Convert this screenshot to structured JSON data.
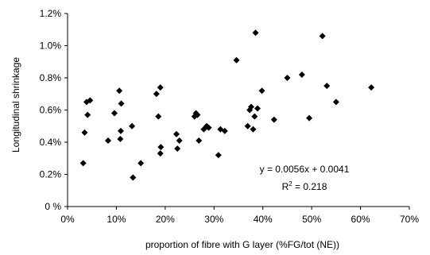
{
  "chart_data": {
    "type": "scatter",
    "title": "",
    "xlabel": "proportion of fibre with G layer (%FG/tot (NE))",
    "ylabel": "Longitudinal shrinkage",
    "ylabel_suffix": ".",
    "xlim": [
      0,
      70
    ],
    "ylim": [
      0,
      1.2
    ],
    "x_ticks": [
      0,
      10,
      20,
      30,
      40,
      50,
      60,
      70
    ],
    "x_tick_labels": [
      "0%",
      "10%",
      "20%",
      "30%",
      "40%",
      "50%",
      "60%",
      "70%"
    ],
    "y_ticks": [
      0,
      0.2,
      0.4,
      0.6,
      0.8,
      1.0,
      1.2
    ],
    "y_tick_labels": [
      "0 %",
      "0.2%",
      "0.4%",
      "0.6%",
      "0.8%",
      "1.0%",
      "1.2%"
    ],
    "grid": false,
    "legend": "none",
    "marker": "diamond",
    "points": [
      [
        3.2,
        0.27
      ],
      [
        3.5,
        0.46
      ],
      [
        3.9,
        0.65
      ],
      [
        4.1,
        0.57
      ],
      [
        4.6,
        0.66
      ],
      [
        8.3,
        0.41
      ],
      [
        9.6,
        0.58
      ],
      [
        10.6,
        0.72
      ],
      [
        10.8,
        0.42
      ],
      [
        10.9,
        0.47
      ],
      [
        11.0,
        0.64
      ],
      [
        13.2,
        0.5
      ],
      [
        13.4,
        0.18
      ],
      [
        15.0,
        0.27
      ],
      [
        18.2,
        0.7
      ],
      [
        18.6,
        0.56
      ],
      [
        19.0,
        0.74
      ],
      [
        19.1,
        0.37
      ],
      [
        19.0,
        0.33
      ],
      [
        22.3,
        0.45
      ],
      [
        22.5,
        0.36
      ],
      [
        22.9,
        0.41
      ],
      [
        26.0,
        0.56
      ],
      [
        26.3,
        0.58
      ],
      [
        26.6,
        0.57
      ],
      [
        26.9,
        0.41
      ],
      [
        27.9,
        0.48
      ],
      [
        28.5,
        0.5
      ],
      [
        28.9,
        0.49
      ],
      [
        30.9,
        0.32
      ],
      [
        31.3,
        0.48
      ],
      [
        32.2,
        0.47
      ],
      [
        34.6,
        0.91
      ],
      [
        36.9,
        0.5
      ],
      [
        37.3,
        0.6
      ],
      [
        37.6,
        0.62
      ],
      [
        38.0,
        0.48
      ],
      [
        38.3,
        0.56
      ],
      [
        38.5,
        1.08
      ],
      [
        38.9,
        0.61
      ],
      [
        39.8,
        0.72
      ],
      [
        42.3,
        0.54
      ],
      [
        45.0,
        0.8
      ],
      [
        48.0,
        0.82
      ],
      [
        49.5,
        0.55
      ],
      [
        52.2,
        1.06
      ],
      [
        53.1,
        0.75
      ],
      [
        55.0,
        0.65
      ],
      [
        62.2,
        0.74
      ]
    ],
    "trendline": {
      "slope": 0.0056,
      "intercept": 0.0041,
      "x_from": 3.2,
      "x_to": 62.2
    },
    "annotations": {
      "equation": "y = 0.0056x + 0.0041",
      "r2_prefix": "R",
      "r2_sup": "2",
      "r2_value": " = 0.218"
    }
  }
}
